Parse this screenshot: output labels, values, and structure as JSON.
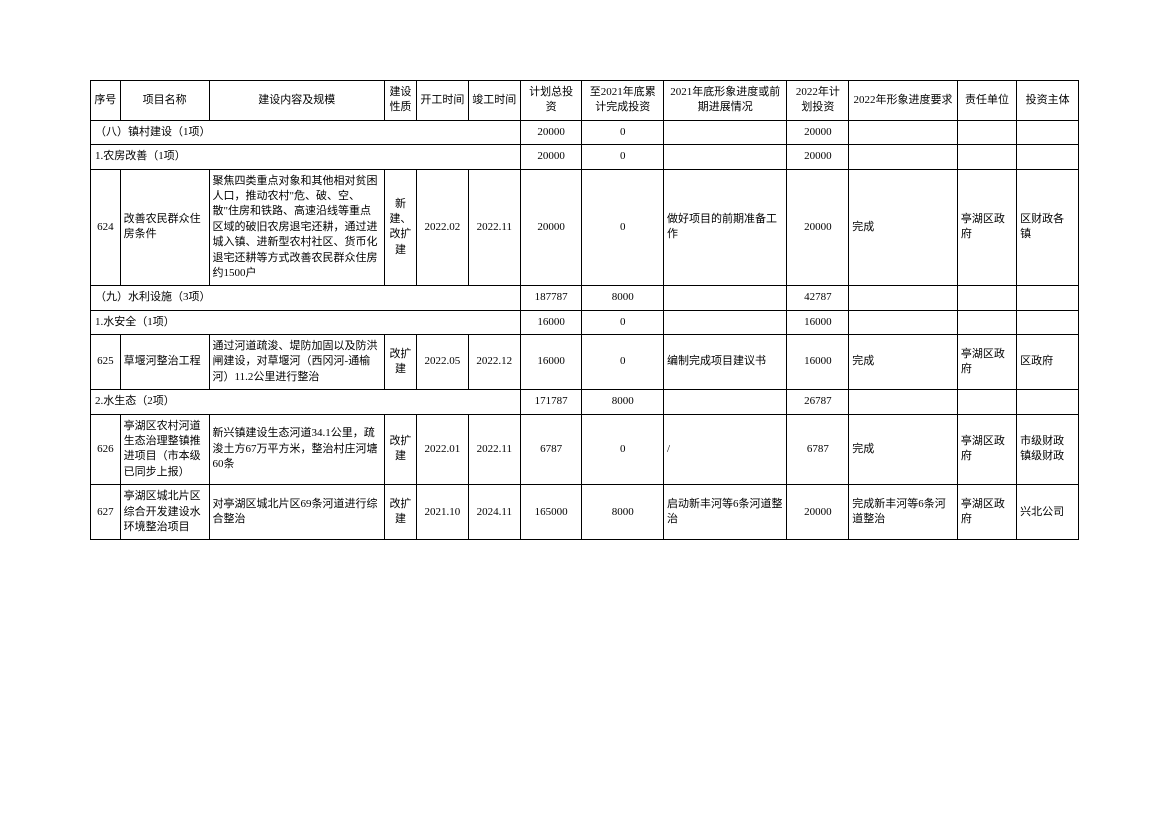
{
  "headers": {
    "seq": "序号",
    "name": "项目名称",
    "content": "建设内容及规模",
    "nature": "建设性质",
    "start": "开工时间",
    "end": "竣工时间",
    "total": "计划总投资",
    "cum": "至2021年底累计完成投资",
    "prog2021": "2021年底形象进度或前期进展情况",
    "plan2022": "2022年计划投资",
    "req2022": "2022年形象进度要求",
    "unit": "责任单位",
    "investor": "投资主体"
  },
  "rows": [
    {
      "type": "section",
      "label": "（八）镇村建设（1项）",
      "total": "20000",
      "cum": "0",
      "plan2022": "20000"
    },
    {
      "type": "section",
      "label": "1.农房改善（1项）",
      "total": "20000",
      "cum": "0",
      "plan2022": "20000"
    },
    {
      "type": "item",
      "seq": "624",
      "name": "改善农民群众住房条件",
      "content": "聚焦四类重点对象和其他相对贫困人口，推动农村\"危、破、空、散\"住房和铁路、高速沿线等重点区域的破旧农房退宅还耕，通过进城入镇、进新型农村社区、货币化退宅还耕等方式改善农民群众住房约1500户",
      "nature": "新建、改扩建",
      "start": "2022.02",
      "end": "2022.11",
      "total": "20000",
      "cum": "0",
      "prog2021": "做好项目的前期准备工作",
      "plan2022": "20000",
      "req2022": "完成",
      "unit": "亭湖区政府",
      "investor": "区财政各镇"
    },
    {
      "type": "section",
      "label": "（九）水利设施（3项）",
      "total": "187787",
      "cum": "8000",
      "plan2022": "42787"
    },
    {
      "type": "section",
      "label": "1.水安全（1项）",
      "total": "16000",
      "cum": "0",
      "plan2022": "16000"
    },
    {
      "type": "item",
      "seq": "625",
      "name": "草堰河整治工程",
      "content": "通过河道疏浚、堤防加固以及防洪闸建设，对草堰河（西冈河-通榆河）11.2公里进行整治",
      "nature": "改扩建",
      "start": "2022.05",
      "end": "2022.12",
      "total": "16000",
      "cum": "0",
      "prog2021": "编制完成项目建议书",
      "plan2022": "16000",
      "req2022": "完成",
      "unit": "亭湖区政府",
      "investor": "区政府"
    },
    {
      "type": "section",
      "label": "2.水生态（2项）",
      "total": "171787",
      "cum": "8000",
      "plan2022": "26787"
    },
    {
      "type": "item",
      "seq": "626",
      "name": "亭湖区农村河道生态治理整镇推进项目（市本级已同步上报）",
      "content": "新兴镇建设生态河道34.1公里，疏浚土方67万平方米，整治村庄河塘60条",
      "nature": "改扩建",
      "start": "2022.01",
      "end": "2022.11",
      "total": "6787",
      "cum": "0",
      "prog2021": "/",
      "plan2022": "6787",
      "req2022": "完成",
      "unit": "亭湖区政府",
      "investor": "市级财政镇级财政"
    },
    {
      "type": "item",
      "seq": "627",
      "name": "亭湖区城北片区综合开发建设水环境整治项目",
      "content": "对亭湖区城北片区69条河道进行综合整治",
      "nature": "改扩建",
      "start": "2021.10",
      "end": "2024.11",
      "total": "165000",
      "cum": "8000",
      "prog2021": "启动新丰河等6条河道整治",
      "plan2022": "20000",
      "req2022": "完成新丰河等6条河道整治",
      "unit": "亭湖区政府",
      "investor": "兴北公司"
    }
  ]
}
